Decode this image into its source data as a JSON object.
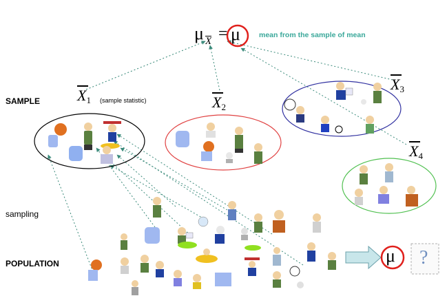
{
  "formula": {
    "mu": "μ",
    "sub": "X",
    "equals": "=",
    "mu_circled": "μ",
    "note": "mean from the sample of mean",
    "note_color": "#3aa89a",
    "circle_color": "#e0201c"
  },
  "labels": {
    "sample": "SAMPLE",
    "sampling": "sampling",
    "population": "POPULATION",
    "sample_statistic": "(sample statistic)"
  },
  "sample_means": [
    {
      "symbol": "X",
      "index": "1"
    },
    {
      "symbol": "X",
      "index": "2"
    },
    {
      "symbol": "X",
      "index": "3"
    },
    {
      "symbol": "X",
      "index": "4"
    }
  ],
  "result": {
    "mu": "μ",
    "question": "?"
  },
  "colors": {
    "sample1_ellipse": "#000000",
    "sample2_ellipse": "#e04040",
    "sample3_ellipse": "#3030a0",
    "sample4_ellipse": "#50c050",
    "arrow": "#3a8a7a",
    "result_arrow_fill": "#c8e6ea"
  }
}
